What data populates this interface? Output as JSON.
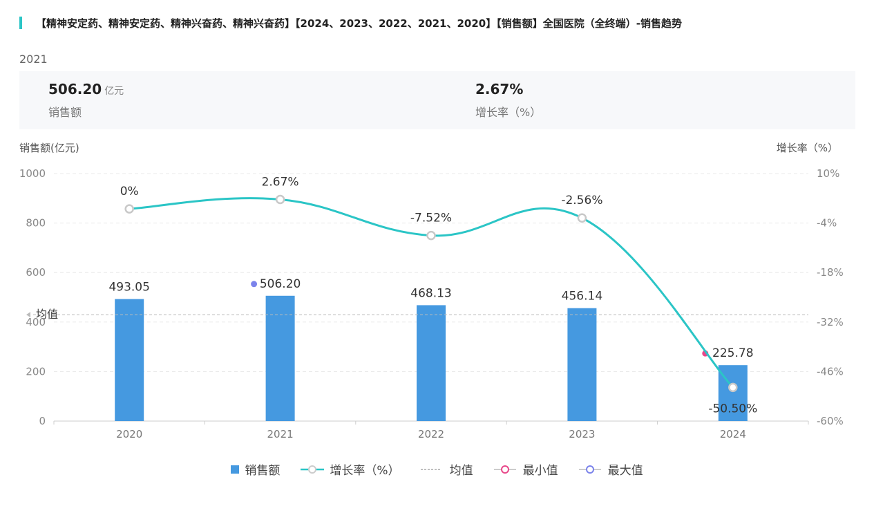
{
  "title": "【精神安定药、精神安定药、精神兴奋药、精神兴奋药】【2024、2023、2022、2021、2020】【销售额】全国医院（全终端）-销售趋势",
  "selected_year": "2021",
  "summary": {
    "sales_value": "506.20",
    "sales_unit": "亿元",
    "sales_label": "销售额",
    "growth_value": "2.67%",
    "growth_label": "增长率（%）"
  },
  "colors": {
    "bar": "#4599e0",
    "line": "#2bc5c6",
    "min": "#e8488a",
    "max": "#7b83eb",
    "accent": "#2bc5c6"
  },
  "chart_data": {
    "type": "bar",
    "categories": [
      "2020",
      "2021",
      "2022",
      "2023",
      "2024"
    ],
    "series": [
      {
        "name": "销售额",
        "type": "bar",
        "axis": "left",
        "values": [
          493.05,
          506.2,
          468.13,
          456.14,
          225.78
        ]
      },
      {
        "name": "增长率（%）",
        "type": "line",
        "axis": "right",
        "values": [
          0,
          2.67,
          -7.52,
          -2.56,
          -50.5
        ],
        "labels": [
          "0%",
          "2.67%",
          "-7.52%",
          "-2.56%",
          "-50.50%"
        ]
      }
    ],
    "bar_labels": [
      "493.05",
      "506.20",
      "468.13",
      "456.14",
      "225.78"
    ],
    "average": {
      "label": "均值",
      "value": 429.86
    },
    "max_index": 1,
    "min_index": 4,
    "ylabel_left": "销售额(亿元)",
    "ylabel_right": "增长率（%）",
    "ylim_left": [
      0,
      1000
    ],
    "yticks_left": [
      "0",
      "200",
      "400",
      "600",
      "800",
      "1000"
    ],
    "ylim_right": [
      -60,
      10
    ],
    "yticks_right": [
      "-60%",
      "-46%",
      "-32%",
      "-18%",
      "-4%",
      "10%"
    ],
    "grid": true,
    "legend": [
      "销售额",
      "增长率（%）",
      "均值",
      "最小值",
      "最大值"
    ],
    "legend_position": "bottom"
  }
}
